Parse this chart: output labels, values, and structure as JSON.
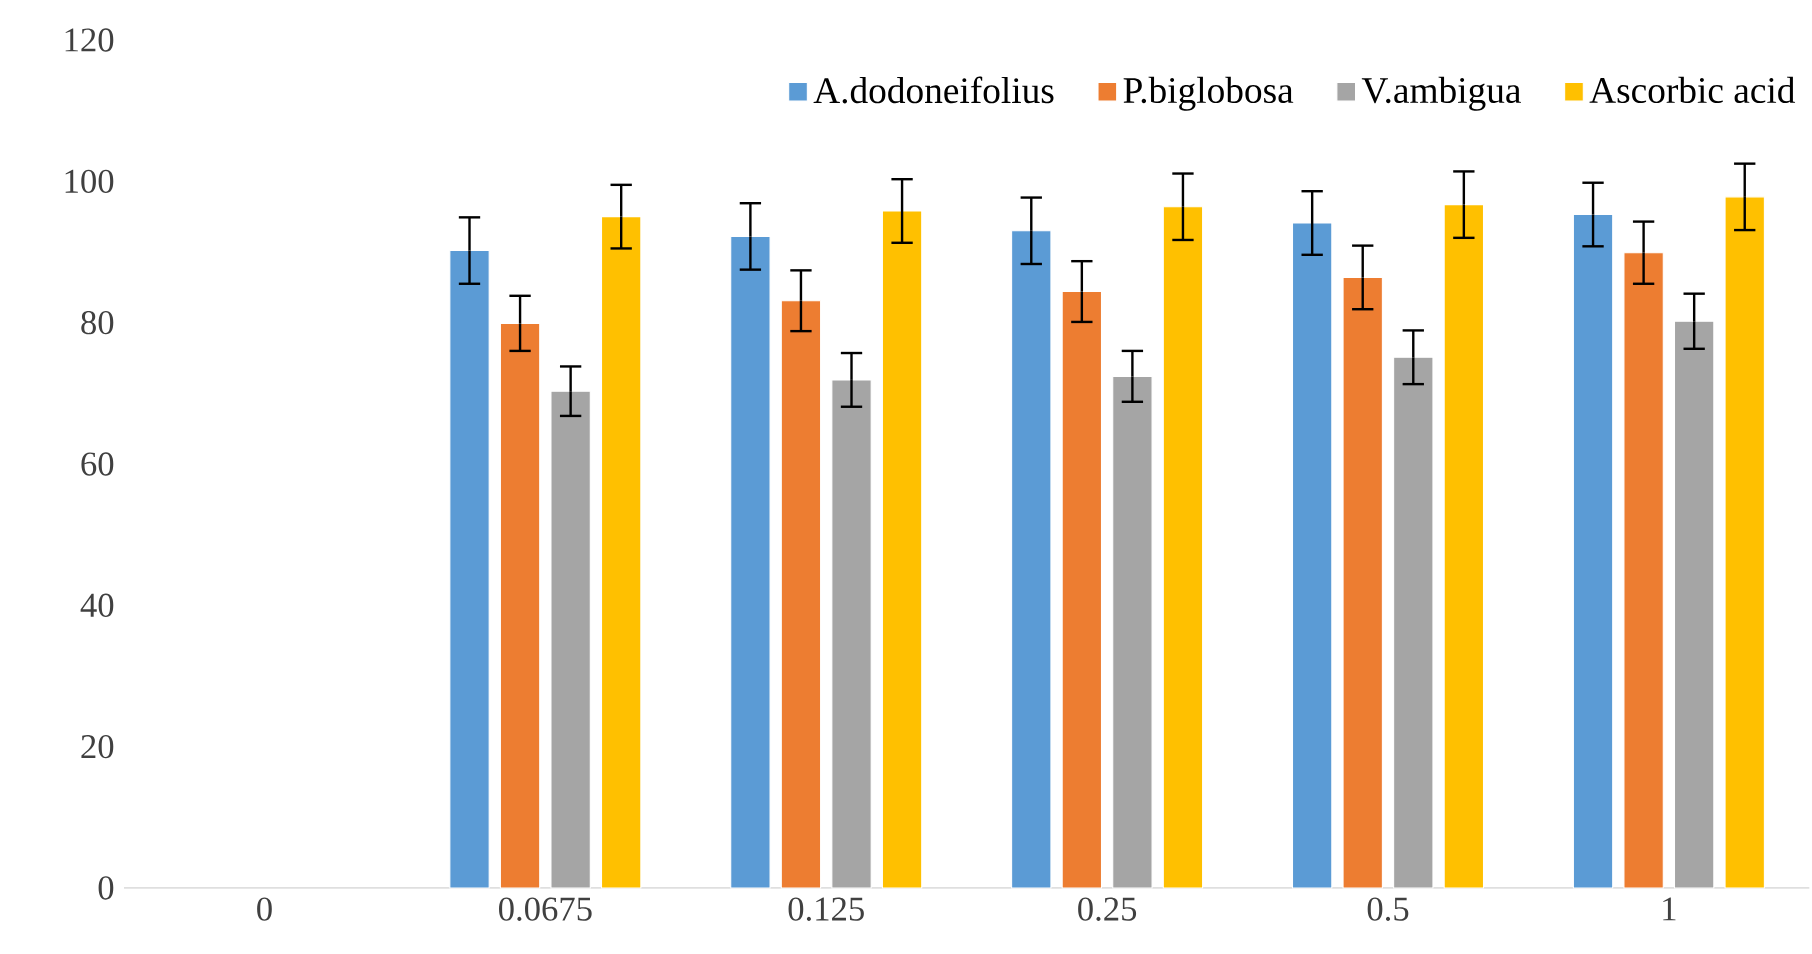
{
  "chart_data": {
    "type": "bar",
    "categories": [
      "0",
      "0.0675",
      "0.125",
      "0.25",
      "0.5",
      "1"
    ],
    "series": [
      {
        "name": "A.dodoneifolius",
        "color": "#5b9bd5",
        "values": [
          null,
          90.2,
          92.2,
          93.0,
          94.1,
          95.3
        ],
        "errors": [
          null,
          4.7,
          4.7,
          4.7,
          4.5,
          4.5
        ]
      },
      {
        "name": "P.biglobosa",
        "color": "#ed7d31",
        "values": [
          null,
          79.9,
          83.1,
          84.4,
          86.4,
          89.9
        ],
        "errors": [
          null,
          3.9,
          4.3,
          4.3,
          4.5,
          4.4
        ]
      },
      {
        "name": "V.ambigua",
        "color": "#a5a5a5",
        "values": [
          null,
          70.3,
          71.9,
          72.4,
          75.1,
          80.2
        ],
        "errors": [
          null,
          3.5,
          3.8,
          3.6,
          3.8,
          3.9
        ]
      },
      {
        "name": "Ascorbic acid",
        "color": "#ffc000",
        "values": [
          null,
          95.0,
          95.8,
          96.4,
          96.7,
          97.8
        ],
        "errors": [
          null,
          4.5,
          4.5,
          4.7,
          4.7,
          4.7
        ]
      }
    ],
    "ylim": [
      0,
      120
    ],
    "yticks": [
      0,
      20,
      40,
      60,
      80,
      100,
      120
    ],
    "grid": false,
    "legend": "top right"
  }
}
